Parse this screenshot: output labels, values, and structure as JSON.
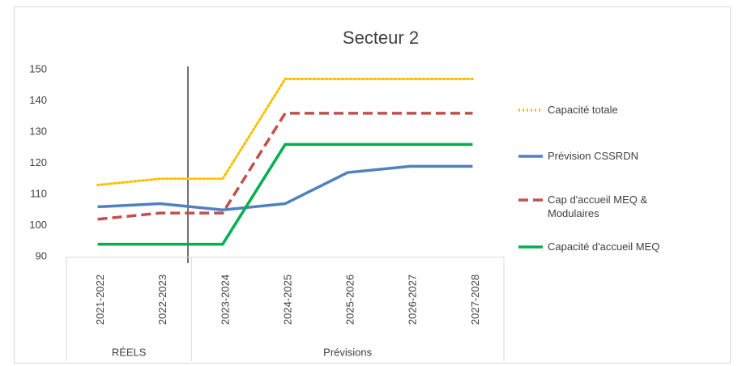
{
  "chart_data": {
    "type": "line",
    "title": "Secteur 2",
    "categories": [
      "2021-2022",
      "2022-2023",
      "2023-2024",
      "2024-2025",
      "2025-2026",
      "2026-2027",
      "2027-2028"
    ],
    "groups": [
      {
        "label": "RÉELS",
        "count": 2
      },
      {
        "label": "Prévisions",
        "count": 5
      }
    ],
    "series": [
      {
        "name": "Capacité totale",
        "color": "#ffc000",
        "dash": "dotted",
        "values": [
          113,
          115,
          115,
          147,
          147,
          147,
          147
        ]
      },
      {
        "name": "Prévision CSSRDN",
        "color": "#4f81bd",
        "dash": "solid",
        "values": [
          106,
          107,
          105,
          107,
          117,
          119,
          119
        ]
      },
      {
        "name": "Cap d'accueil MEQ & Modulaires",
        "color": "#c0504d",
        "dash": "dashed",
        "values": [
          102,
          104,
          104,
          136,
          136,
          136,
          136
        ]
      },
      {
        "name": "Capacité d'accueil MEQ",
        "color": "#00b050",
        "dash": "solid",
        "values": [
          94,
          94,
          94,
          126,
          126,
          126,
          126
        ]
      }
    ],
    "ylim": [
      90,
      150
    ],
    "yticks": [
      90,
      100,
      110,
      120,
      130,
      140,
      150
    ],
    "grid": false,
    "legend": "right"
  }
}
